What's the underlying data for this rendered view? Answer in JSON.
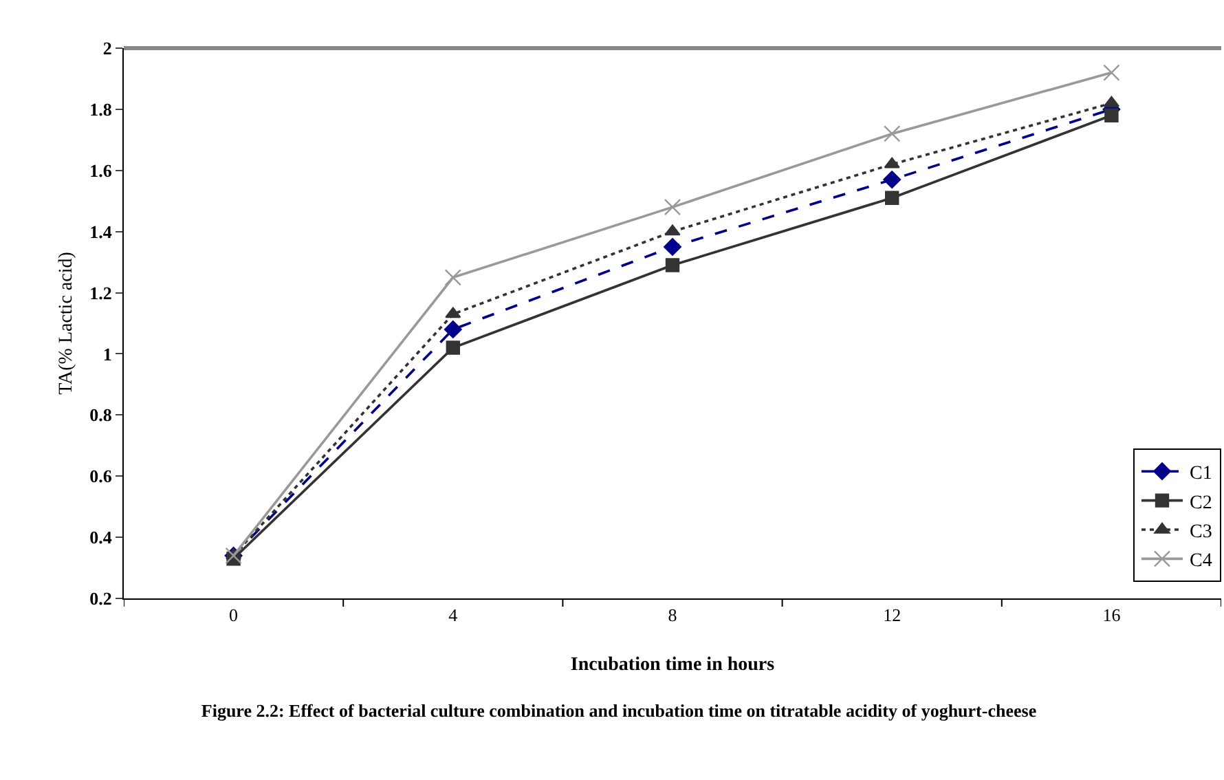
{
  "chart_data": {
    "type": "line",
    "title": "Figure 2.2:  Effect of bacterial culture combination and incubation time on titratable acidity of yoghurt-cheese",
    "xlabel": "Incubation time in hours",
    "ylabel": "TA(% Lactic acid)",
    "categories": [
      "0",
      "4",
      "8",
      "12",
      "16"
    ],
    "series": [
      {
        "name": "C1",
        "color": "#00008b",
        "line_style": "dashed",
        "marker": "diamond",
        "values": [
          0.34,
          1.08,
          1.35,
          1.57,
          1.8
        ]
      },
      {
        "name": "C2",
        "color": "#333333",
        "line_style": "solid",
        "marker": "square",
        "values": [
          0.33,
          1.02,
          1.29,
          1.51,
          1.78
        ]
      },
      {
        "name": "C3",
        "color": "#333333",
        "line_style": "dotted",
        "marker": "triangle",
        "values": [
          0.34,
          1.13,
          1.4,
          1.62,
          1.82
        ]
      },
      {
        "name": "C4",
        "color": "#999999",
        "line_style": "solid",
        "marker": "cross",
        "values": [
          0.34,
          1.25,
          1.48,
          1.72,
          1.92
        ]
      }
    ],
    "ylim": [
      0.2,
      2
    ],
    "yticks": [
      0.2,
      0.4,
      0.6,
      0.8,
      1,
      1.2,
      1.4,
      1.6,
      1.8,
      2
    ],
    "grid": false,
    "legend": "bottom right"
  }
}
